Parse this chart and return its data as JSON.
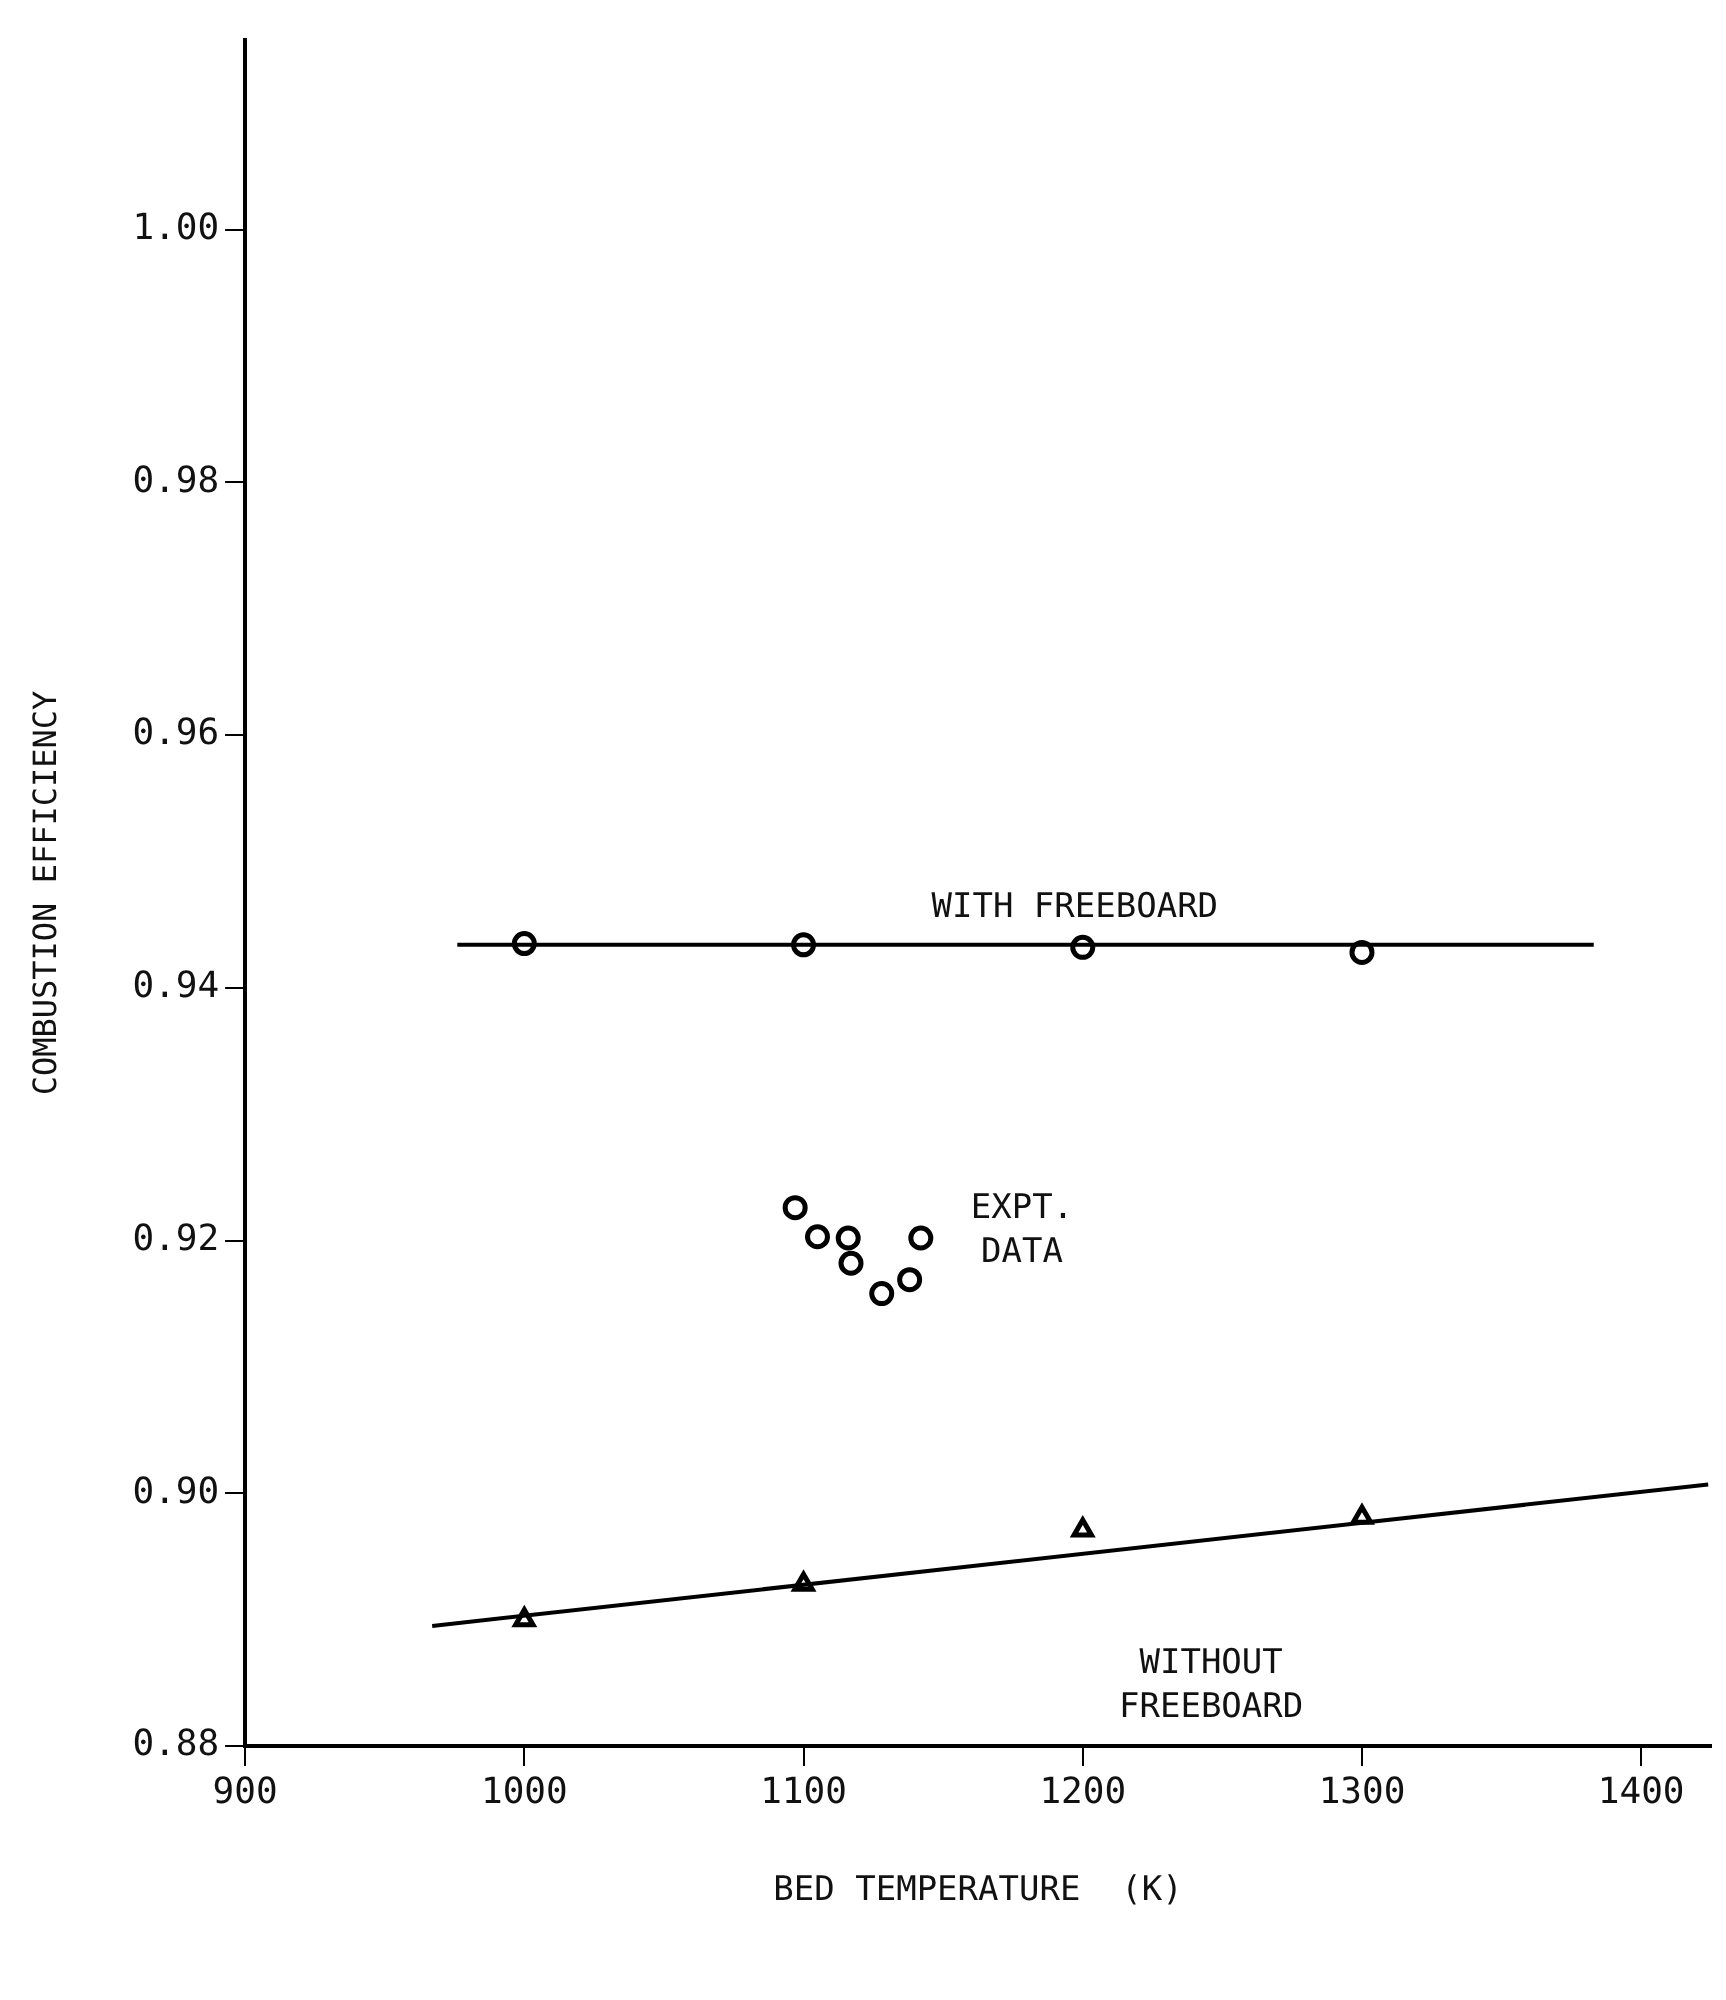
{
  "chart_data": {
    "type": "scatter",
    "xlabel": "BED TEMPERATURE  (K)",
    "ylabel": "COMBUSTION EFFICIENCY",
    "xlim": [
      900,
      1425
    ],
    "xticks": [
      900,
      1000,
      1100,
      1200,
      1300,
      1400
    ],
    "ylim": [
      0.88,
      1.015
    ],
    "yticks": [
      {
        "value": 0.88,
        "label": "0.88"
      },
      {
        "value": 0.9,
        "label": "0.90"
      },
      {
        "value": 0.92,
        "label": "0.92"
      },
      {
        "value": 0.94,
        "label": "0.94"
      },
      {
        "value": 0.96,
        "label": "0.96"
      },
      {
        "value": 0.98,
        "label": "0.98"
      },
      {
        "value": 1,
        "label": "1.00"
      }
    ],
    "grid": false,
    "legend": false,
    "series": [
      {
        "type": "line",
        "marker": "none",
        "color": "#000000",
        "x": [
          976,
          1383
        ],
        "values": [
          0.9434,
          0.9434
        ]
      },
      {
        "type": "scatter",
        "marker": "circle",
        "color": "#000000",
        "x": [
          1000,
          1100,
          1200,
          1300
        ],
        "values": [
          0.9435,
          0.9434,
          0.9432,
          0.9428
        ]
      },
      {
        "type": "line",
        "marker": "none",
        "color": "#000000",
        "x": [
          967,
          1424
        ],
        "values": [
          0.8895,
          0.9007
        ]
      },
      {
        "type": "scatter",
        "marker": "triangle",
        "color": "#000000",
        "x": [
          1000,
          1100,
          1200,
          1300
        ],
        "values": [
          0.89,
          0.8928,
          0.8971,
          0.8981
        ]
      },
      {
        "type": "scatter",
        "marker": "circle",
        "color": "#000000",
        "x": [
          1097,
          1105,
          1116,
          1117,
          1128,
          1138,
          1142
        ],
        "values": [
          0.9226,
          0.9203,
          0.9202,
          0.9182,
          0.9158,
          0.9169,
          0.9202
        ]
      }
    ],
    "annotations": [
      "WITH FREEBOARD",
      "EXPT.\nDATA",
      "WITHOUT\nFREEBOARD"
    ]
  }
}
